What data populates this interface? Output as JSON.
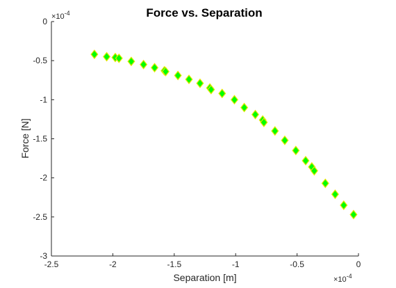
{
  "chart_data": {
    "type": "scatter",
    "title": "Force vs. Separation",
    "xlabel": "Separation [m]",
    "ylabel": "Force [N]",
    "x_exponent_label": "×10",
    "x_exponent_power": "-4",
    "y_exponent_label": "×10",
    "y_exponent_power": "-4",
    "xlim": [
      -2.5,
      0
    ],
    "ylim": [
      -3,
      0
    ],
    "x_ticks": [
      -2.5,
      -2,
      -1.5,
      -1,
      -0.5,
      0
    ],
    "y_ticks": [
      -3,
      -2.5,
      -2,
      -1.5,
      -1,
      -0.5,
      0
    ],
    "x_tick_labels": [
      "-2.5",
      "-2",
      "-1.5",
      "-1",
      "-0.5",
      "0"
    ],
    "y_tick_labels": [
      "-3",
      "-2.5",
      "-2",
      "-1.5",
      "-1",
      "-0.5",
      "0"
    ],
    "grid": false,
    "marker": "diamond",
    "marker_fill": "#00ff00",
    "marker_edge": "#e6e600",
    "series": [
      {
        "x": [
          -2.15,
          -2.05,
          -1.98,
          -1.95,
          -1.85,
          -1.75,
          -1.66,
          -1.58,
          -1.57,
          -1.47,
          -1.38,
          -1.29,
          -1.21,
          -1.2,
          -1.11,
          -1.01,
          -0.93,
          -0.84,
          -0.78,
          -0.77,
          -0.68,
          -0.6,
          -0.51,
          -0.43,
          -0.38,
          -0.36,
          -0.27,
          -0.19,
          -0.12,
          -0.04
        ],
        "y": [
          -0.42,
          -0.45,
          -0.46,
          -0.47,
          -0.51,
          -0.55,
          -0.59,
          -0.63,
          -0.64,
          -0.69,
          -0.74,
          -0.79,
          -0.85,
          -0.87,
          -0.92,
          -1.0,
          -1.1,
          -1.19,
          -1.26,
          -1.29,
          -1.4,
          -1.52,
          -1.65,
          -1.78,
          -1.86,
          -1.91,
          -2.07,
          -2.21,
          -2.35,
          -2.47
        ]
      }
    ]
  }
}
